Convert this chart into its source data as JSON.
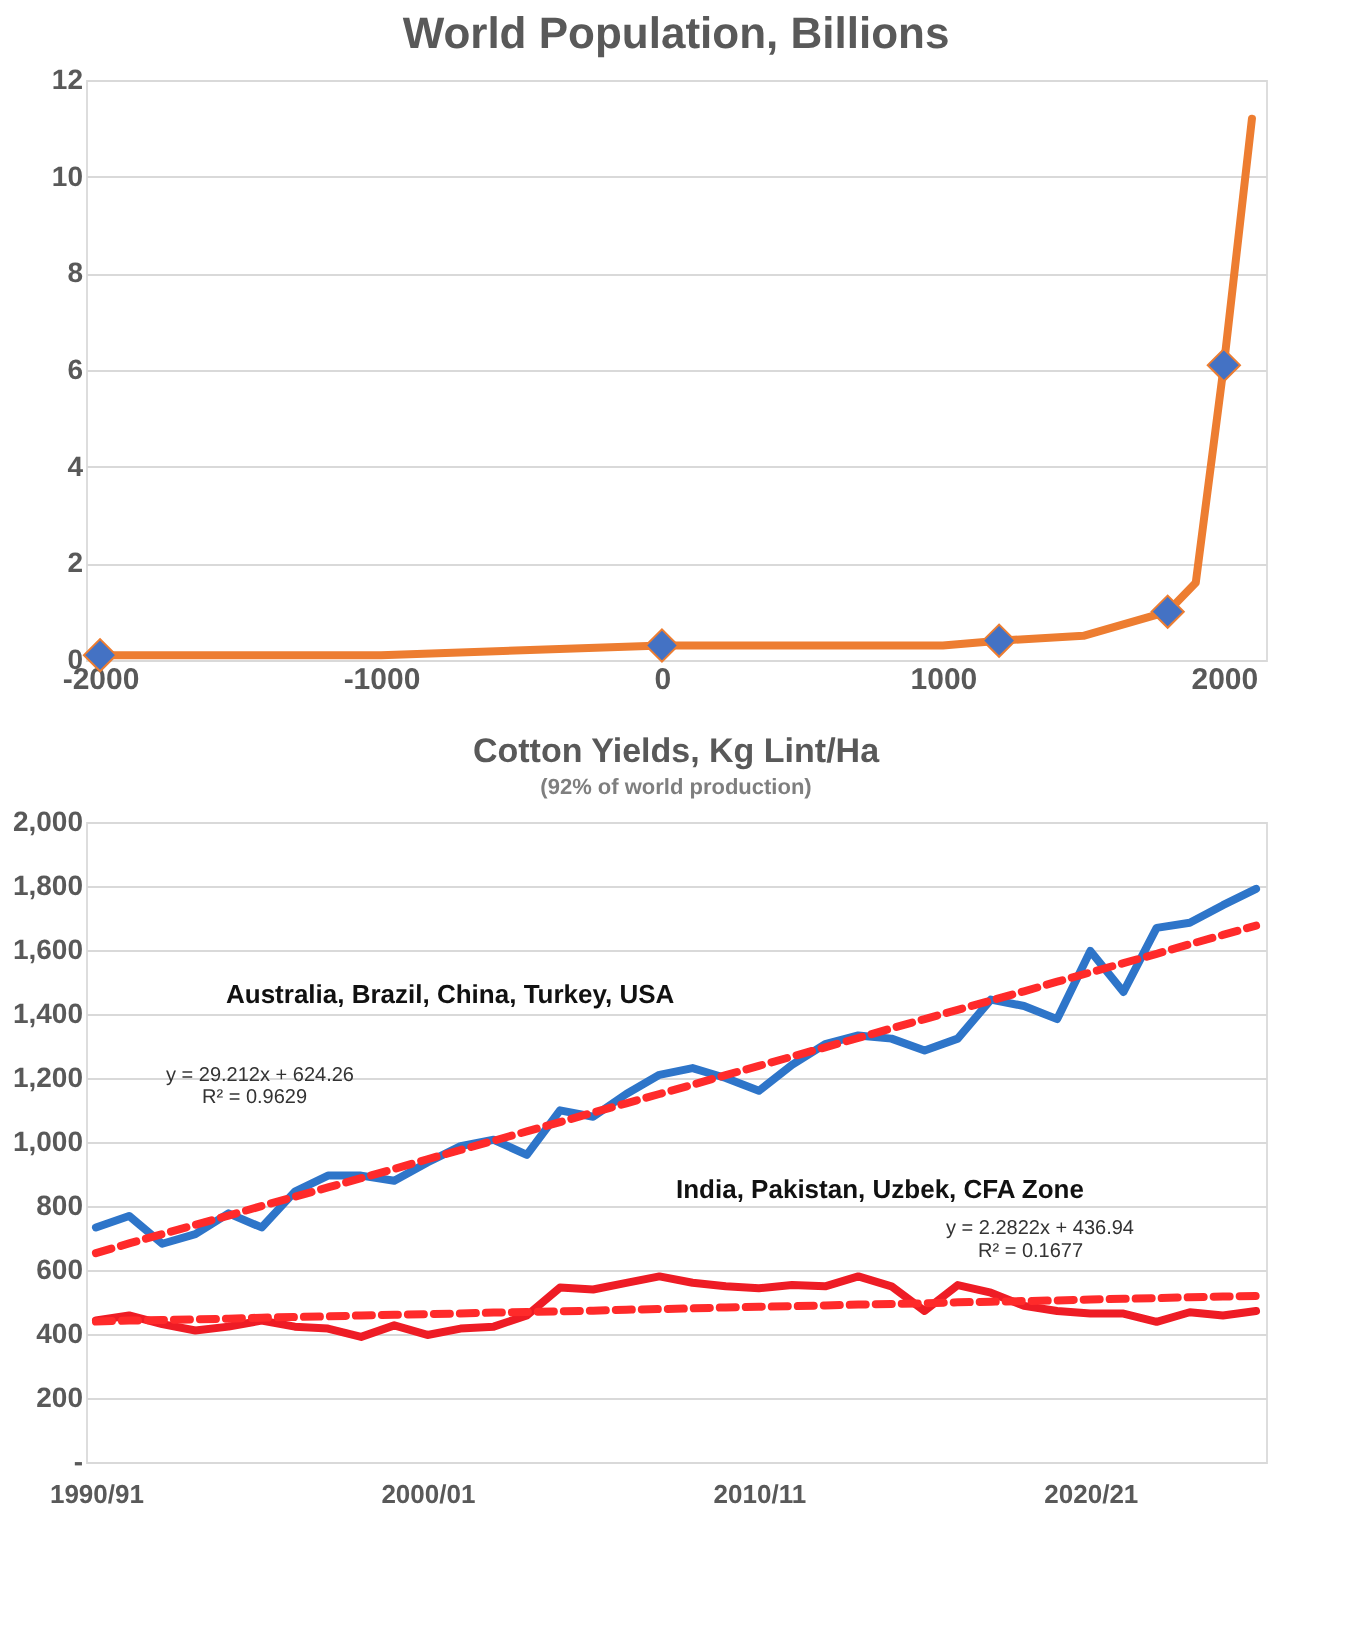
{
  "chart_data": [
    {
      "type": "line",
      "title": "World Population, Billions",
      "grid": "y",
      "legend": false,
      "xlim": [
        -2050,
        2150
      ],
      "xticks": [
        {
          "value": -2000,
          "label": "-2000"
        },
        {
          "value": -1000,
          "label": "-1000"
        },
        0,
        {
          "value": 1000,
          "label": "1000"
        },
        {
          "value": 2000,
          "label": "2000"
        }
      ],
      "ylim": [
        0,
        12
      ],
      "yticks": [
        0,
        2,
        4,
        6,
        8,
        10,
        12
      ],
      "series": [
        {
          "color": "#ed7d31",
          "marker": "none",
          "x": [
            -2000,
            -1000,
            0,
            1000,
            1200,
            1500,
            1800,
            1900,
            2000,
            2100
          ],
          "values": [
            0.1,
            0.1,
            0.3,
            0.3,
            0.4,
            0.5,
            1.0,
            1.6,
            6.1,
            11.2
          ]
        },
        {
          "type": "scatter",
          "color": "#4472c4",
          "marker": "diamond",
          "x": [
            -2000,
            0,
            1200,
            1800,
            2000
          ],
          "values": [
            0.1,
            0.3,
            0.4,
            1.0,
            6.1
          ]
        }
      ]
    },
    {
      "type": "line",
      "title": "Cotton Yields, Kg Lint/Ha",
      "subtitle": "(92% of world production)",
      "grid": "y",
      "legend": false,
      "categories": [
        "1990/91",
        null,
        null,
        null,
        null,
        null,
        null,
        null,
        null,
        null,
        "2000/01",
        null,
        null,
        null,
        null,
        null,
        null,
        null,
        null,
        null,
        "2010/11",
        null,
        null,
        null,
        null,
        null,
        null,
        null,
        null,
        null,
        "2020/21",
        null,
        null,
        null,
        null,
        null
      ],
      "ylim": [
        0,
        2000
      ],
      "yticks": [
        {
          "value": 0,
          "label": "-"
        },
        200,
        400,
        600,
        800,
        {
          "value": 1000,
          "label": "1,000"
        },
        {
          "value": 1200,
          "label": "1,200"
        },
        {
          "value": 1400,
          "label": "1,400"
        },
        {
          "value": 1600,
          "label": "1,600"
        },
        {
          "value": 1800,
          "label": "1,800"
        },
        {
          "value": 2000,
          "label": "2,000"
        }
      ],
      "annotations": [
        "y = 29.212x + 624.26",
        "R² = 0.9629",
        "y = 2.2822x + 436.94",
        "R² = 0.1677"
      ],
      "series": [
        {
          "name": "Australia, Brazil, China, Turkey, USA",
          "color": "#2e75c9",
          "line_style": "solid",
          "values": [
            733,
            769,
            682,
            712,
            777,
            733,
            845,
            895,
            895,
            879,
            936,
            987,
            1007,
            960,
            1099,
            1079,
            1150,
            1210,
            1231,
            1200,
            1160,
            1241,
            1306,
            1333,
            1323,
            1286,
            1323,
            1445,
            1425,
            1384,
            1597,
            1469,
            1669,
            1685,
            1740,
            1791
          ]
        },
        {
          "name": "India, Pakistan, Uzbek, CFA Zone",
          "color": "#ee1c25",
          "line_style": "solid",
          "values": [
            442,
            458,
            431,
            411,
            423,
            442,
            423,
            417,
            391,
            427,
            397,
            417,
            423,
            458,
            545,
            539,
            560,
            580,
            560,
            549,
            543,
            553,
            549,
            580,
            549,
            472,
            553,
            529,
            488,
            472,
            464,
            464,
            438,
            468,
            458,
            472
          ]
        },
        {
          "color": "#ff2a2a",
          "line_style": "dashed",
          "values": [
            653,
            683,
            712,
            741,
            770,
            800,
            829,
            858,
            887,
            916,
            946,
            975,
            1004,
            1033,
            1062,
            1092,
            1121,
            1150,
            1179,
            1209,
            1238,
            1267,
            1296,
            1325,
            1355,
            1384,
            1413,
            1442,
            1471,
            1501,
            1530,
            1559,
            1588,
            1618,
            1647,
            1676
          ]
        },
        {
          "color": "#ff2a2a",
          "line_style": "dashed",
          "values": [
            439,
            442,
            444,
            446,
            448,
            451,
            453,
            455,
            458,
            460,
            462,
            464,
            467,
            469,
            471,
            473,
            476,
            478,
            480,
            483,
            485,
            487,
            489,
            492,
            494,
            496,
            499,
            501,
            503,
            505,
            508,
            510,
            512,
            515,
            517,
            519
          ]
        }
      ]
    }
  ]
}
